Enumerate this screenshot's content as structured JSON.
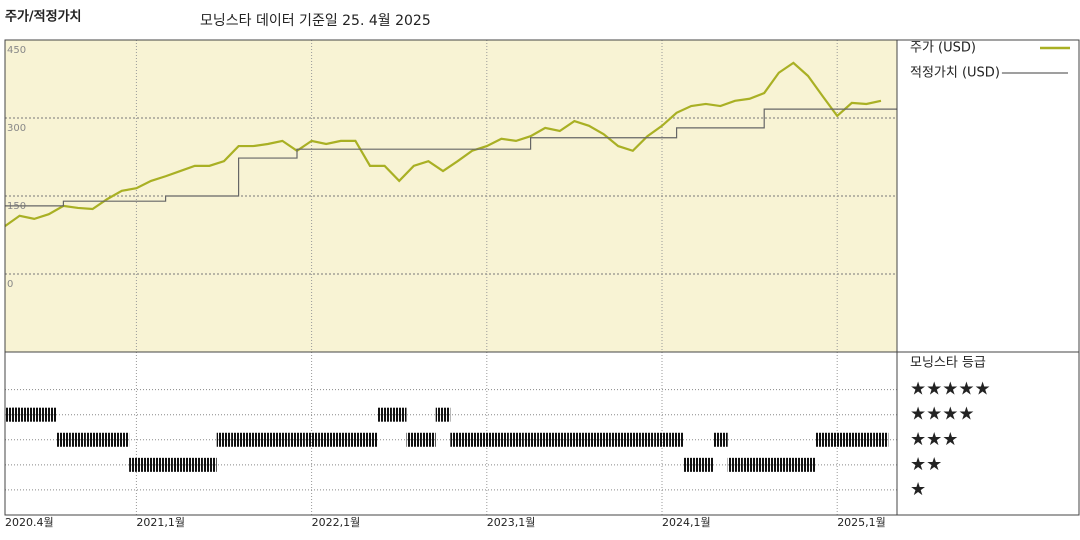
{
  "chart_data": [
    {
      "type": "line",
      "title": "주가/적정가치",
      "subtitle": "모닝스타 데이터 기준일 25. 4월 2025",
      "x": [
        "2020-04",
        "2020-05",
        "2020-06",
        "2020-07",
        "2020-08",
        "2020-09",
        "2020-10",
        "2020-11",
        "2020-12",
        "2021-01",
        "2021-02",
        "2021-03",
        "2021-04",
        "2021-05",
        "2021-06",
        "2021-07",
        "2021-08",
        "2021-09",
        "2021-10",
        "2021-11",
        "2021-12",
        "2022-01",
        "2022-02",
        "2022-03",
        "2022-04",
        "2022-05",
        "2022-06",
        "2022-07",
        "2022-08",
        "2022-09",
        "2022-10",
        "2022-11",
        "2022-12",
        "2023-01",
        "2023-02",
        "2023-03",
        "2023-04",
        "2023-05",
        "2023-06",
        "2023-07",
        "2023-08",
        "2023-09",
        "2023-10",
        "2023-11",
        "2023-12",
        "2024-01",
        "2024-02",
        "2024-03",
        "2024-04",
        "2024-05",
        "2024-06",
        "2024-07",
        "2024-08",
        "2024-09",
        "2024-10",
        "2024-11",
        "2024-12",
        "2025-01",
        "2025-02",
        "2025-03",
        "2025-04"
      ],
      "series": [
        {
          "name": "주가 (USD)",
          "color": "#a9b024",
          "values": [
            92,
            112,
            106,
            115,
            131,
            127,
            125,
            144,
            160,
            165,
            179,
            188,
            198,
            208,
            208,
            217,
            246,
            246,
            250,
            256,
            237,
            256,
            250,
            256,
            256,
            208,
            208,
            179,
            208,
            217,
            198,
            217,
            237,
            246,
            260,
            256,
            265,
            281,
            275,
            294,
            285,
            269,
            246,
            237,
            265,
            285,
            310,
            323,
            327,
            323,
            333,
            337,
            348,
            387,
            406,
            381,
            342,
            304,
            329,
            327,
            333
          ]
        },
        {
          "name": "적정가치 (USD)",
          "color": "#666666",
          "step": true,
          "values": [
            131,
            131,
            131,
            131,
            140,
            140,
            140,
            140,
            140,
            140,
            140,
            150,
            150,
            150,
            150,
            150,
            223,
            223,
            223,
            223,
            240,
            240,
            240,
            240,
            240,
            240,
            240,
            240,
            240,
            240,
            240,
            240,
            240,
            240,
            240,
            240,
            262,
            262,
            262,
            262,
            262,
            262,
            262,
            262,
            262,
            262,
            281,
            281,
            281,
            281,
            281,
            281,
            317,
            317,
            317,
            317,
            317,
            317,
            317,
            317,
            317
          ]
        }
      ],
      "ylim": [
        -150,
        450
      ],
      "yticks": [
        0,
        150,
        300,
        450
      ],
      "xticks": [
        {
          "value": "2020-04",
          "label": "2020.4월"
        },
        {
          "value": "2021-01",
          "label": "2021,1월"
        },
        {
          "value": "2022-01",
          "label": "2022,1월"
        },
        {
          "value": "2023-01",
          "label": "2023,1월"
        },
        {
          "value": "2024-01",
          "label": "2024,1월"
        },
        {
          "value": "2025-01",
          "label": "2025,1월"
        }
      ],
      "grid": true,
      "background": "#f8f3d4"
    },
    {
      "type": "rating",
      "title": "모닝스타 등급",
      "color": "#111111",
      "values": [
        4,
        4,
        4,
        4,
        3,
        3,
        3,
        3,
        3,
        2,
        2,
        2,
        2,
        2,
        2,
        3,
        3,
        3,
        3,
        3,
        3,
        3,
        3,
        3,
        3,
        3,
        4,
        4,
        3,
        3,
        4,
        3,
        3,
        3,
        3,
        3,
        3,
        3,
        3,
        3,
        3,
        3,
        3,
        3,
        3,
        3,
        3,
        2,
        2,
        3,
        2,
        2,
        2,
        2,
        2,
        2,
        3,
        3,
        3,
        3,
        3
      ],
      "ylim": [
        0,
        6.5
      ],
      "yticks": [
        {
          "value": 5,
          "label": "★★★★★"
        },
        {
          "value": 4,
          "label": "★★★★"
        },
        {
          "value": 3,
          "label": "★★★"
        },
        {
          "value": 2,
          "label": "★★"
        },
        {
          "value": 1,
          "label": "★"
        }
      ]
    }
  ]
}
